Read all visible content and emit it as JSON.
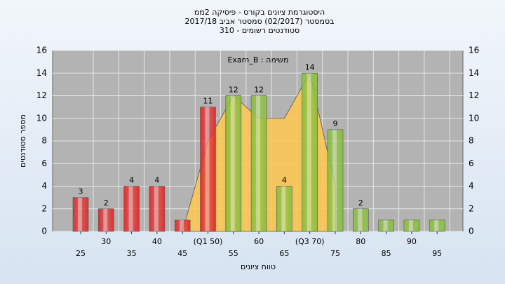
{
  "chart_data": {
    "type": "bar",
    "title": "היסטוגרמת ציונים בקורס - פיסיקה 2ממ",
    "subtitle": "בסמסטר  (02/2017)  סמסטר אביב 2017/18",
    "subtitle2": "סטודנטים רשומים - 310",
    "annotation": "משימה : Exam_B",
    "y_label": "מספר סטודנטים",
    "x_label": "טווח ציונים",
    "categories": [
      "25",
      "30",
      "35",
      "40",
      "45",
      "(Q1 50)",
      "55",
      "60",
      "65",
      "(Q3 70)",
      "75",
      "80",
      "85",
      "90",
      "95"
    ],
    "values": [
      3,
      2,
      4,
      4,
      1,
      11,
      12,
      12,
      4,
      14,
      9,
      2,
      1,
      1,
      1
    ],
    "value_labels": [
      "3",
      "2",
      "4",
      "4",
      null,
      "11",
      "12",
      "12",
      "4",
      "14",
      "9",
      "2",
      null,
      null,
      null
    ],
    "colors": [
      "#e03030",
      "#e03030",
      "#e03030",
      "#e03030",
      "#e03030",
      "#e03030",
      "#8cc040",
      "#8cc040",
      "#8cc040",
      "#8cc040",
      "#8cc040",
      "#8cc040",
      "#8cc040",
      "#8cc040",
      "#8cc040"
    ],
    "area": {
      "color": "#ffc850",
      "values": [
        null,
        null,
        null,
        null,
        0,
        8,
        12,
        10,
        10,
        14,
        4,
        null,
        null,
        null,
        null
      ]
    },
    "ylim": [
      0,
      16
    ],
    "yticks": [
      0,
      2,
      4,
      6,
      8,
      10,
      12,
      14,
      16
    ],
    "grid": true
  }
}
